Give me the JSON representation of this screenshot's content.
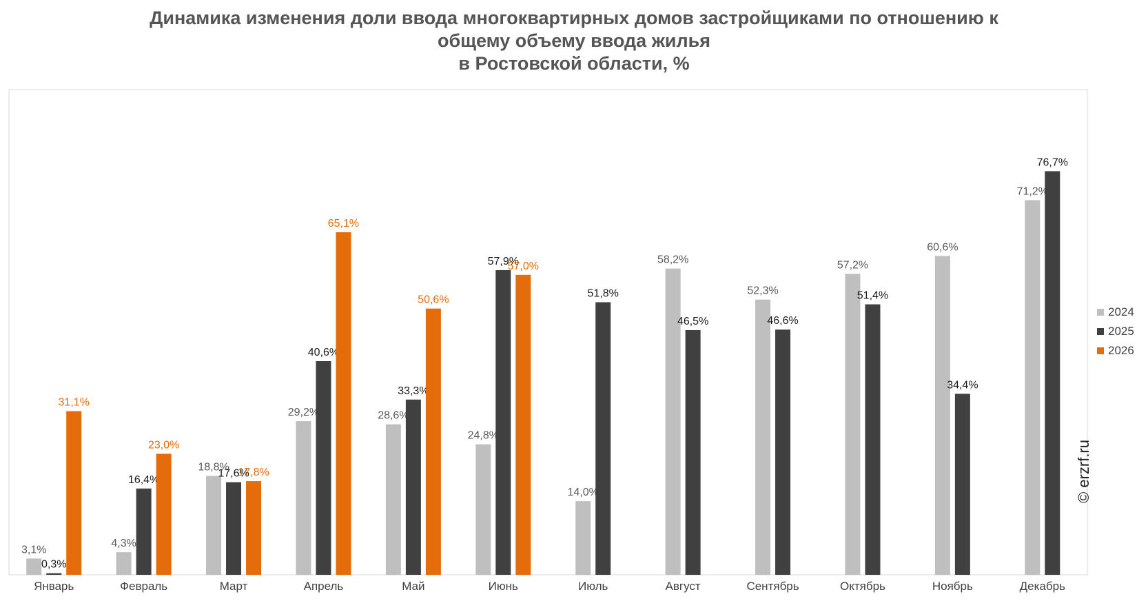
{
  "title": {
    "line1": "Динамика изменения доли ввода многоквартирных домов застройщиками по отношению к",
    "line2": "общему объему ввода жилья",
    "line3": "в Ростовской области, %"
  },
  "watermark": "© erzrf.ru",
  "colors": {
    "2024": "#bfbfbf",
    "2025": "#404040",
    "2026": "#e46c0a",
    "label_2024": "#595959",
    "label_2025": "#1a1a1a",
    "label_2026": "#e46c0a"
  },
  "chart_data": {
    "type": "bar",
    "categories": [
      "Январь",
      "Февраль",
      "Март",
      "Апрель",
      "Май",
      "Июнь",
      "Июль",
      "Август",
      "Сентябрь",
      "Октябрь",
      "Ноябрь",
      "Декабрь"
    ],
    "series": [
      {
        "name": "2024",
        "values": [
          3.1,
          4.3,
          18.8,
          29.2,
          28.6,
          24.8,
          14.0,
          58.2,
          52.3,
          57.2,
          60.6,
          71.2
        ],
        "labels": [
          "3,1%",
          "4,3%",
          "18,8%",
          "29,2%",
          "28,6%",
          "24,8%",
          "14,0%",
          "58,2%",
          "52,3%",
          "57,2%",
          "60,6%",
          "71,2%"
        ]
      },
      {
        "name": "2025",
        "values": [
          0.3,
          16.4,
          17.6,
          40.6,
          33.3,
          57.9,
          51.8,
          46.5,
          46.6,
          51.4,
          34.4,
          76.7
        ],
        "labels": [
          "0,3%",
          "16,4%",
          "17,6%",
          "40,6%",
          "33,3%",
          "57,9%",
          "51,8%",
          "46,5%",
          "46,6%",
          "51,4%",
          "34,4%",
          "76,7%"
        ]
      },
      {
        "name": "2026",
        "values": [
          31.1,
          23.0,
          17.8,
          65.1,
          50.6,
          57.0,
          null,
          null,
          null,
          null,
          null,
          null
        ],
        "labels": [
          "31,1%",
          "23,0%",
          "17,8%",
          "65,1%",
          "50,6%",
          "57,0%",
          null,
          null,
          null,
          null,
          null,
          null
        ]
      }
    ],
    "ylim": [
      0,
      80
    ],
    "grid": false,
    "legend": "right"
  }
}
